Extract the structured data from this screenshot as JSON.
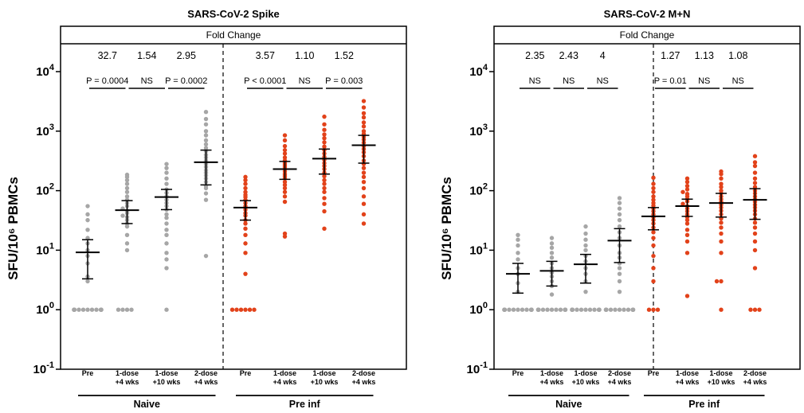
{
  "chart_data": [
    {
      "type": "scatter",
      "title": "SARS-CoV-2 Spike",
      "ylabel": "SFU/10⁶ PBMCs",
      "yscale": "log",
      "ylim": [
        0.1,
        10000
      ],
      "yticks": [
        {
          "base": "10",
          "exp": "-1",
          "value": 0.1
        },
        {
          "base": "10",
          "exp": "0",
          "value": 1
        },
        {
          "base": "10",
          "exp": "1",
          "value": 10
        },
        {
          "base": "10",
          "exp": "2",
          "value": 100
        },
        {
          "base": "10",
          "exp": "3",
          "value": 1000
        },
        {
          "base": "10",
          "exp": "4",
          "value": 10000
        }
      ],
      "fold_change_label": "Fold Change",
      "fold_changes": [
        "32.7",
        "1.54",
        "2.95",
        "3.57",
        "1.10",
        "1.52"
      ],
      "comparisons": [
        "P = 0.0004",
        "NS",
        "P = 0.0002",
        "P < 0.0001",
        "NS",
        "P = 0.003"
      ],
      "groups": [
        "Naive",
        "Pre inf"
      ],
      "categories": [
        {
          "line1": "Pre",
          "line2": ""
        },
        {
          "line1": "1-dose",
          "line2": "+4 wks"
        },
        {
          "line1": "1-dose",
          "line2": "+10 wks"
        },
        {
          "line1": "2-dose",
          "line2": "+4 wks"
        },
        {
          "line1": "Pre",
          "line2": ""
        },
        {
          "line1": "1-dose",
          "line2": "+4 wks"
        },
        {
          "line1": "1-dose",
          "line2": "+10 wks"
        },
        {
          "line1": "2-dose",
          "line2": "+4 wks"
        }
      ],
      "series": [
        {
          "group": "Naive",
          "color": "#a6a6a6",
          "mean": 9.2,
          "ci": [
            3.3,
            15
          ],
          "values": [
            1,
            1,
            1,
            1,
            1,
            1,
            1,
            1,
            1,
            1,
            1,
            1,
            1,
            1,
            3,
            3.6,
            6,
            8,
            10,
            13,
            16,
            22,
            32,
            40,
            55
          ]
        },
        {
          "group": "Naive",
          "color": "#a6a6a6",
          "mean": 47,
          "ci": [
            28,
            68
          ],
          "values": [
            1,
            1,
            1,
            1,
            10,
            13,
            18,
            25,
            28,
            32,
            36,
            38,
            42,
            46,
            50,
            55,
            62,
            70,
            80,
            95,
            110,
            130,
            150,
            170,
            185
          ]
        },
        {
          "group": "Naive",
          "color": "#a6a6a6",
          "mean": 78,
          "ci": [
            48,
            105
          ],
          "values": [
            1,
            5,
            7,
            9,
            13,
            18,
            22,
            28,
            35,
            40,
            48,
            55,
            62,
            70,
            80,
            92,
            105,
            130,
            160,
            200,
            240,
            280
          ]
        },
        {
          "group": "Naive",
          "color": "#a6a6a6",
          "mean": 300,
          "ci": [
            125,
            480
          ],
          "values": [
            8,
            70,
            90,
            110,
            120,
            140,
            160,
            180,
            200,
            220,
            250,
            280,
            320,
            360,
            400,
            460,
            520,
            600,
            700,
            850,
            1000,
            1300,
            1600,
            2100
          ]
        },
        {
          "group": "Pre inf",
          "color": "#e2421a",
          "mean": 52,
          "ci": [
            32,
            68
          ],
          "values": [
            1,
            1,
            1,
            1,
            1,
            1,
            4,
            9,
            13,
            18,
            23,
            28,
            32,
            38,
            42,
            48,
            55,
            62,
            70,
            78,
            85,
            95,
            110,
            130,
            150,
            170
          ]
        },
        {
          "group": "Pre inf",
          "color": "#e2421a",
          "mean": 230,
          "ci": [
            155,
            310
          ],
          "values": [
            17,
            19,
            65,
            80,
            95,
            110,
            125,
            140,
            160,
            175,
            190,
            210,
            230,
            250,
            270,
            290,
            320,
            360,
            420,
            480,
            560,
            700,
            850
          ]
        },
        {
          "group": "Pre inf",
          "color": "#e2421a",
          "mean": 345,
          "ci": [
            190,
            500
          ],
          "values": [
            23,
            45,
            60,
            75,
            95,
            110,
            130,
            150,
            175,
            200,
            230,
            260,
            290,
            330,
            370,
            420,
            480,
            550,
            650,
            760,
            880,
            1050,
            1300,
            1750
          ]
        },
        {
          "group": "Pre inf",
          "color": "#e2421a",
          "mean": 580,
          "ci": [
            290,
            850
          ],
          "values": [
            28,
            40,
            60,
            80,
            110,
            140,
            170,
            200,
            240,
            280,
            320,
            380,
            440,
            500,
            560,
            640,
            720,
            800,
            900,
            1000,
            1200,
            1400,
            1700,
            2000,
            2500,
            3200
          ]
        }
      ]
    },
    {
      "type": "scatter",
      "title": "SARS-CoV-2 M+N",
      "ylabel": "SFU/10⁶ PBMCs",
      "yscale": "log",
      "ylim": [
        0.1,
        10000
      ],
      "yticks": [
        {
          "base": "10",
          "exp": "-1",
          "value": 0.1
        },
        {
          "base": "10",
          "exp": "0",
          "value": 1
        },
        {
          "base": "10",
          "exp": "1",
          "value": 10
        },
        {
          "base": "10",
          "exp": "2",
          "value": 100
        },
        {
          "base": "10",
          "exp": "3",
          "value": 1000
        },
        {
          "base": "10",
          "exp": "4",
          "value": 10000
        }
      ],
      "fold_change_label": "Fold Change",
      "fold_changes": [
        "2.35",
        "2.43",
        "4",
        "1.27",
        "1.13",
        "1.08"
      ],
      "comparisons": [
        "NS",
        "NS",
        "NS",
        "P = 0.01",
        "NS",
        "NS"
      ],
      "groups": [
        "Naive",
        "Pre inf"
      ],
      "categories": [
        {
          "line1": "Pre",
          "line2": ""
        },
        {
          "line1": "1-dose",
          "line2": "+4 wks"
        },
        {
          "line1": "1-dose",
          "line2": "+10 wks"
        },
        {
          "line1": "2-dose",
          "line2": "+4 wks"
        },
        {
          "line1": "Pre",
          "line2": ""
        },
        {
          "line1": "1-dose",
          "line2": "+4 wks"
        },
        {
          "line1": "1-dose",
          "line2": "+10 wks"
        },
        {
          "line1": "2-dose",
          "line2": "+4 wks"
        }
      ],
      "series": [
        {
          "group": "Naive",
          "color": "#a6a6a6",
          "mean": 4,
          "ci": [
            1.9,
            6
          ],
          "values": [
            1,
            1,
            1,
            1,
            1,
            1,
            1,
            1,
            1,
            1,
            1,
            1,
            1,
            1,
            1,
            2,
            2.8,
            4,
            5,
            7,
            9,
            12,
            15,
            18
          ]
        },
        {
          "group": "Naive",
          "color": "#a6a6a6",
          "mean": 4.5,
          "ci": [
            2.5,
            6.5
          ],
          "values": [
            1,
            1,
            1,
            1,
            1,
            1,
            1,
            1,
            1,
            1,
            1,
            1,
            1.8,
            2.5,
            3,
            3.6,
            4.2,
            5,
            6,
            7.5,
            9,
            11,
            13,
            16
          ]
        },
        {
          "group": "Naive",
          "color": "#a6a6a6",
          "mean": 5.8,
          "ci": [
            2.8,
            8.5
          ],
          "values": [
            1,
            1,
            1,
            1,
            1,
            1,
            1,
            1,
            1,
            1,
            1,
            1,
            1,
            1,
            2,
            3,
            4,
            5,
            6.5,
            8,
            10,
            12,
            15,
            19,
            25
          ]
        },
        {
          "group": "Naive",
          "color": "#a6a6a6",
          "mean": 14.5,
          "ci": [
            6.2,
            23
          ],
          "values": [
            1,
            1,
            1,
            1,
            1,
            1,
            1,
            1,
            1,
            1,
            1,
            1,
            1,
            2,
            3,
            4,
            5,
            6,
            7.5,
            9,
            12,
            16,
            20,
            25,
            32,
            40,
            50,
            62,
            75
          ]
        },
        {
          "group": "Pre inf",
          "color": "#e2421a",
          "mean": 37,
          "ci": [
            22,
            52
          ],
          "values": [
            1,
            1,
            1,
            3,
            5,
            8,
            12,
            16,
            20,
            24,
            28,
            32,
            36,
            40,
            45,
            50,
            56,
            62,
            70,
            80,
            95,
            110,
            130,
            165
          ]
        },
        {
          "group": "Pre inf",
          "color": "#e2421a",
          "mean": 55,
          "ci": [
            37,
            72
          ],
          "values": [
            1.7,
            9,
            14,
            18,
            22,
            28,
            32,
            36,
            40,
            45,
            50,
            55,
            60,
            66,
            72,
            80,
            88,
            95,
            105,
            120,
            140,
            160
          ]
        },
        {
          "group": "Pre inf",
          "color": "#e2421a",
          "mean": 62,
          "ci": [
            36,
            90
          ],
          "values": [
            1,
            3,
            3,
            9,
            14,
            19,
            24,
            29,
            34,
            40,
            46,
            52,
            58,
            65,
            72,
            80,
            90,
            100,
            115,
            130,
            160,
            190,
            210
          ]
        },
        {
          "group": "Pre inf",
          "color": "#e2421a",
          "mean": 70,
          "ci": [
            33,
            108
          ],
          "values": [
            1,
            1,
            1,
            5,
            10,
            14,
            19,
            24,
            29,
            34,
            40,
            46,
            52,
            58,
            65,
            72,
            80,
            90,
            100,
            115,
            135,
            160,
            200,
            260,
            300,
            380
          ]
        }
      ]
    }
  ]
}
